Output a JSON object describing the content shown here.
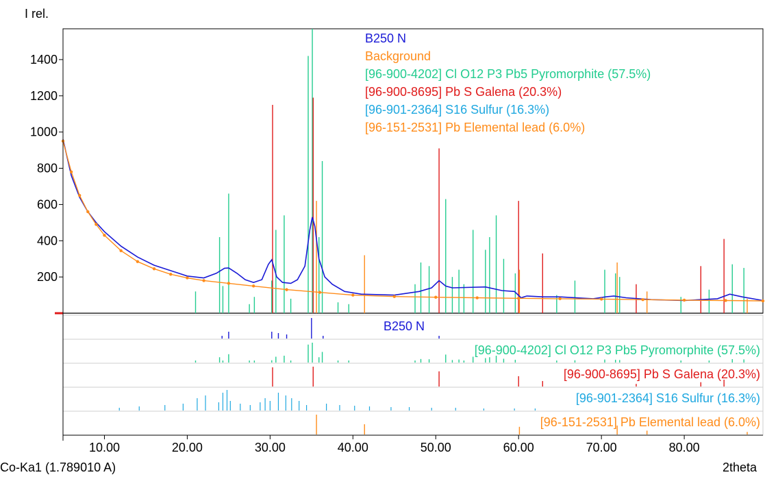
{
  "chart_data": {
    "type": "line",
    "ylabel": "I rel.",
    "xlabel": "2theta",
    "radiation": "Co-Ka1 (1.789010 A)",
    "xlim": [
      5,
      89.5
    ],
    "ylim": [
      0,
      1570
    ],
    "xticks": [
      "10.00",
      "20.00",
      "30.00",
      "40.00",
      "50.00",
      "60.00",
      "70.00",
      "80.00"
    ],
    "yticks": [
      "200",
      "400",
      "600",
      "800",
      "1000",
      "1200",
      "1400"
    ],
    "colors": {
      "measured": "#1a1ad6",
      "background": "#ff8c1a",
      "pyromorphite": "#22cc8f",
      "galena": "#e01b1b",
      "sulfur": "#1fa8e0",
      "lead": "#ff8c1a"
    },
    "legend": [
      {
        "label": "B250 N",
        "color": "#1a1ad6"
      },
      {
        "label": "Background",
        "color": "#ff8c1a"
      },
      {
        "label": "[96-900-4202] Cl O12 P3 Pb5  Pyromorphite (57.5%)",
        "color": "#22cc8f"
      },
      {
        "label": "[96-900-8695] Pb S  Galena (20.3%)",
        "color": "#e01b1b"
      },
      {
        "label": "[96-901-2364] S16  Sulfur (16.3%)",
        "color": "#1fa8e0"
      },
      {
        "label": "[96-151-2531] Pb Elemental lead (6.0%)",
        "color": "#ff8c1a"
      }
    ],
    "series": [
      {
        "name": "B250 N",
        "x": [
          5,
          6,
          7,
          8,
          9,
          10,
          12,
          14,
          16,
          18,
          20,
          22,
          23.5,
          24.5,
          25,
          26,
          27,
          28,
          29,
          29.8,
          30.2,
          30.8,
          31.5,
          32.5,
          33.3,
          34.2,
          34.8,
          35.1,
          35.4,
          35.9,
          36.6,
          37.5,
          39,
          41,
          45,
          48,
          49.5,
          50.4,
          51.2,
          52,
          56,
          58,
          59.5,
          60.3,
          61,
          63,
          65,
          69,
          70.5,
          71.5,
          73,
          76,
          80,
          84,
          85.5,
          87,
          89.5
        ],
        "y": [
          960,
          760,
          640,
          560,
          500,
          450,
          370,
          310,
          265,
          235,
          205,
          195,
          220,
          248,
          250,
          220,
          185,
          170,
          185,
          270,
          295,
          200,
          170,
          165,
          185,
          260,
          460,
          530,
          480,
          300,
          200,
          160,
          120,
          105,
          100,
          120,
          140,
          180,
          150,
          140,
          145,
          125,
          120,
          85,
          95,
          90,
          90,
          80,
          90,
          95,
          85,
          75,
          70,
          80,
          105,
          90,
          70
        ]
      },
      {
        "name": "Background",
        "x": [
          5,
          6,
          7,
          8,
          9,
          10,
          12,
          14,
          16,
          18,
          20,
          22,
          25,
          28,
          32,
          36,
          40,
          45,
          50,
          55,
          60,
          65,
          70,
          75,
          80,
          85,
          89.5
        ],
        "y": [
          950,
          780,
          650,
          560,
          490,
          430,
          345,
          285,
          245,
          215,
          195,
          180,
          165,
          150,
          130,
          115,
          100,
          92,
          88,
          85,
          82,
          80,
          78,
          75,
          72,
          70,
          68
        ]
      }
    ],
    "peaks": {
      "pyromorphite": [
        [
          21,
          120
        ],
        [
          23.9,
          420
        ],
        [
          24.3,
          150
        ],
        [
          25,
          660
        ],
        [
          27.5,
          50
        ],
        [
          28.1,
          90
        ],
        [
          30.2,
          180
        ],
        [
          30.7,
          460
        ],
        [
          31.7,
          540
        ],
        [
          32.5,
          80
        ],
        [
          34.6,
          1420
        ],
        [
          35.1,
          1570
        ],
        [
          35.9,
          420
        ],
        [
          36.3,
          840
        ],
        [
          38.2,
          60
        ],
        [
          39.5,
          50
        ],
        [
          47.5,
          160
        ],
        [
          48.2,
          280
        ],
        [
          49.2,
          260
        ],
        [
          51.2,
          630
        ],
        [
          52,
          200
        ],
        [
          52.8,
          240
        ],
        [
          53.4,
          160
        ],
        [
          54.5,
          460
        ],
        [
          56,
          350
        ],
        [
          56.5,
          420
        ],
        [
          57.3,
          540
        ],
        [
          58.2,
          300
        ],
        [
          59.6,
          220
        ],
        [
          64.6,
          100
        ],
        [
          66.8,
          180
        ],
        [
          70.4,
          240
        ],
        [
          71.7,
          220
        ],
        [
          72.2,
          200
        ],
        [
          79.6,
          90
        ],
        [
          83,
          130
        ],
        [
          85.8,
          270
        ],
        [
          87.2,
          250
        ]
      ],
      "galena": [
        [
          30.3,
          1150
        ],
        [
          35.2,
          1190
        ],
        [
          50.4,
          910
        ],
        [
          60.0,
          620
        ],
        [
          62.9,
          330
        ],
        [
          74.2,
          160
        ],
        [
          82.0,
          260
        ],
        [
          84.8,
          410
        ]
      ],
      "lead": [
        [
          35.6,
          620
        ],
        [
          41.4,
          320
        ],
        [
          60.1,
          240
        ],
        [
          71.9,
          280
        ],
        [
          75.5,
          120
        ],
        [
          87.6,
          80
        ]
      ]
    },
    "strips": [
      {
        "label": "B250 N",
        "color": "#1a1ad6"
      },
      {
        "label": "[96-900-4202] Cl O12 P3 Pb5  Pyromorphite (57.5%)",
        "color": "#22cc8f"
      },
      {
        "label": "[96-900-8695] Pb S  Galena (20.3%)",
        "color": "#e01b1b"
      },
      {
        "label": "[96-901-2364] S16  Sulfur (16.3%)",
        "color": "#1fa8e0"
      },
      {
        "label": "[96-151-2531] Pb Elemental lead (6.0%)",
        "color": "#ff8c1a"
      }
    ]
  }
}
